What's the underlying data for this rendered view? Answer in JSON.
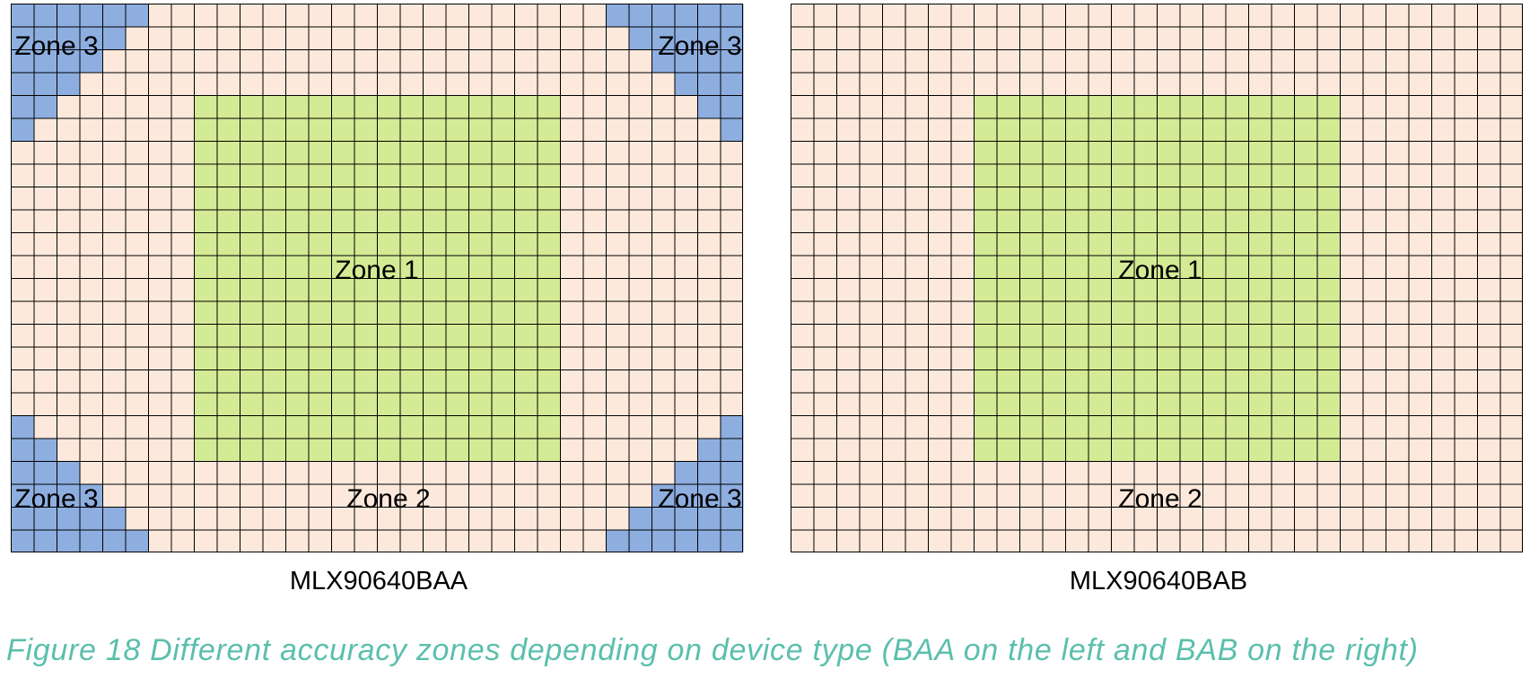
{
  "colors": {
    "zone1": "#d4eb95",
    "zone2": "#fde9dc",
    "zone3": "#8eaee0",
    "grid_line": "#000000",
    "caption": "#5bbfad"
  },
  "grid": {
    "columns": 32,
    "rows": 24
  },
  "panels": [
    {
      "id": "baa",
      "device_label": "MLX90640BAA",
      "zone1_label": "Zone 1",
      "zone2_label": "Zone 2",
      "zone3_label": "Zone 3",
      "zone1_cells": {
        "col_start": 8,
        "col_end": 23,
        "row_start": 4,
        "row_end": 19
      },
      "has_zone3": true,
      "zone3_row_widths_top": [
        6,
        5,
        4,
        3,
        2,
        1
      ]
    },
    {
      "id": "bab",
      "device_label": "MLX90640BAB",
      "zone1_label": "Zone 1",
      "zone2_label": "Zone 2",
      "zone1_cells": {
        "col_start": 8,
        "col_end": 23,
        "row_start": 4,
        "row_end": 19
      },
      "has_zone3": false
    }
  ],
  "figure_caption": "Figure 18 Different accuracy zones depending on device type (BAA on the left and BAB on the right)"
}
